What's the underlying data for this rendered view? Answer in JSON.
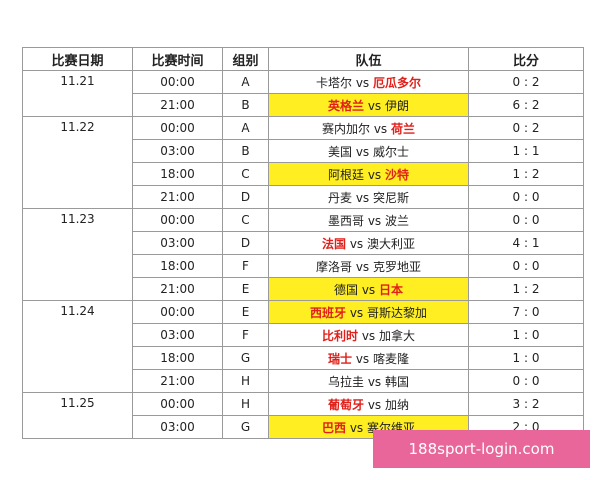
{
  "header": [
    "比赛日期",
    "比赛时间",
    "组别",
    "队伍",
    "比分"
  ],
  "vs": "vs",
  "days": [
    {
      "date": "11.21",
      "matches": [
        {
          "time": "00:00",
          "group": "A",
          "home": "卡塔尔",
          "away": "厄瓜多尔",
          "score": "0 : 2",
          "highlight": false,
          "home_red": false,
          "away_red": true
        },
        {
          "time": "21:00",
          "group": "B",
          "home": "英格兰",
          "away": "伊朗",
          "score": "6 : 2",
          "highlight": true,
          "home_red": true,
          "away_red": false
        }
      ]
    },
    {
      "date": "11.22",
      "matches": [
        {
          "time": "00:00",
          "group": "A",
          "home": "赛内加尔",
          "away": "荷兰",
          "score": "0 : 2",
          "highlight": false,
          "home_red": false,
          "away_red": true
        },
        {
          "time": "03:00",
          "group": "B",
          "home": "美国",
          "away": "威尔士",
          "score": "1 : 1",
          "highlight": false,
          "home_red": false,
          "away_red": false
        },
        {
          "time": "18:00",
          "group": "C",
          "home": "阿根廷",
          "away": "沙特",
          "score": "1 : 2",
          "highlight": true,
          "home_red": false,
          "away_red": true
        },
        {
          "time": "21:00",
          "group": "D",
          "home": "丹麦",
          "away": "突尼斯",
          "score": "0 : 0",
          "highlight": false,
          "home_red": false,
          "away_red": false
        }
      ]
    },
    {
      "date": "11.23",
      "matches": [
        {
          "time": "00:00",
          "group": "C",
          "home": "墨西哥",
          "away": "波兰",
          "score": "0 : 0",
          "highlight": false,
          "home_red": false,
          "away_red": false
        },
        {
          "time": "03:00",
          "group": "D",
          "home": "法国",
          "away": "澳大利亚",
          "score": "4 : 1",
          "highlight": false,
          "home_red": true,
          "away_red": false
        },
        {
          "time": "18:00",
          "group": "F",
          "home": "摩洛哥",
          "away": "克罗地亚",
          "score": "0 : 0",
          "highlight": false,
          "home_red": false,
          "away_red": false
        },
        {
          "time": "21:00",
          "group": "E",
          "home": "德国",
          "away": "日本",
          "score": "1 : 2",
          "highlight": true,
          "home_red": false,
          "away_red": true
        }
      ]
    },
    {
      "date": "11.24",
      "matches": [
        {
          "time": "00:00",
          "group": "E",
          "home": "西班牙",
          "away": "哥斯达黎加",
          "score": "7 : 0",
          "highlight": true,
          "home_red": true,
          "away_red": false
        },
        {
          "time": "03:00",
          "group": "F",
          "home": "比利时",
          "away": "加拿大",
          "score": "1 : 0",
          "highlight": false,
          "home_red": true,
          "away_red": false
        },
        {
          "time": "18:00",
          "group": "G",
          "home": "瑞士",
          "away": "喀麦隆",
          "score": "1 : 0",
          "highlight": false,
          "home_red": true,
          "away_red": false
        },
        {
          "time": "21:00",
          "group": "H",
          "home": "乌拉圭",
          "away": "韩国",
          "score": "0 : 0",
          "highlight": false,
          "home_red": false,
          "away_red": false
        }
      ]
    },
    {
      "date": "11.25",
      "matches": [
        {
          "time": "00:00",
          "group": "H",
          "home": "葡萄牙",
          "away": "加纳",
          "score": "3 : 2",
          "highlight": false,
          "home_red": true,
          "away_red": false
        },
        {
          "time": "03:00",
          "group": "G",
          "home": "巴西",
          "away": "塞尔维亚",
          "score": "2 : 0",
          "highlight": true,
          "home_red": true,
          "away_red": false
        }
      ]
    }
  ],
  "watermark": "188sport-login.com"
}
